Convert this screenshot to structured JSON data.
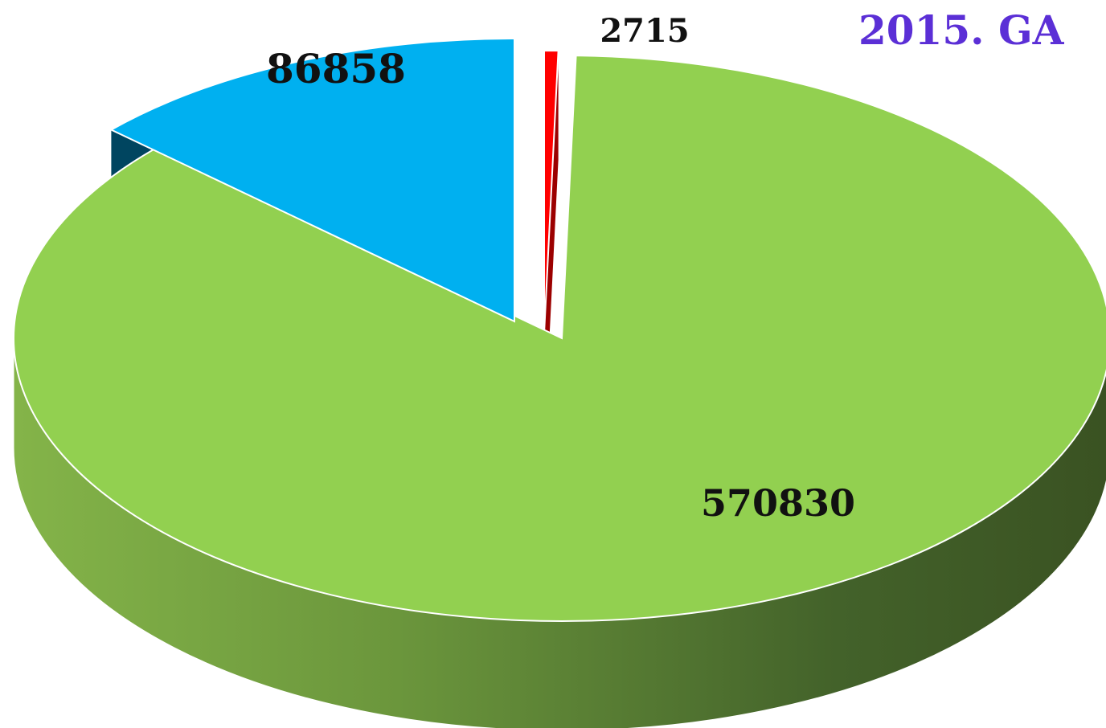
{
  "chart_data": {
    "type": "pie",
    "title": "2015. GA",
    "slices": [
      {
        "label": "2715",
        "value": 2715,
        "color": "#ff0000",
        "side_color": "#9c0000"
      },
      {
        "label": "570830",
        "value": 570830,
        "color": "#92d050",
        "side_color": "#7aa844"
      },
      {
        "label": "86858",
        "value": 86858,
        "color": "#00b0f0",
        "side_color": "#004560"
      }
    ],
    "legend": "none",
    "three_d": true
  }
}
